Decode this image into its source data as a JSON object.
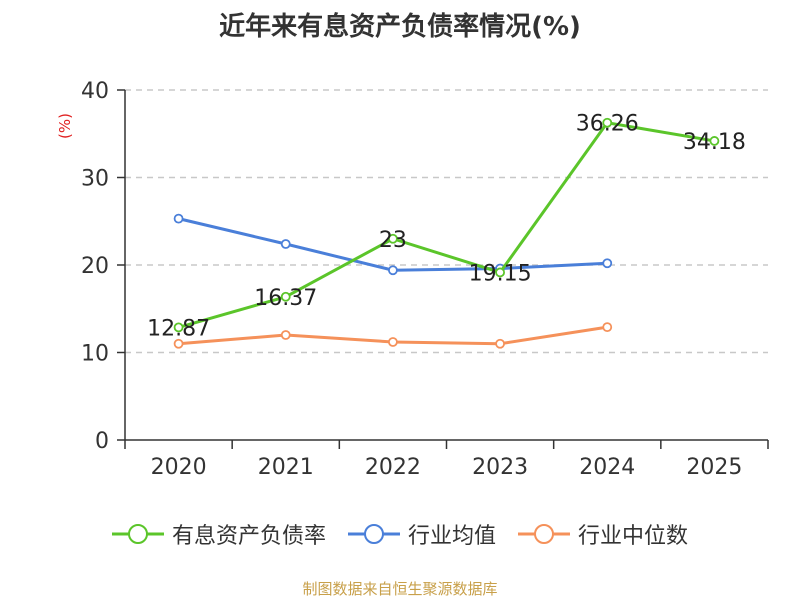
{
  "chart_data": {
    "type": "line",
    "title": "近年来有息资产负债率情况(%)",
    "ylabel": "(%)",
    "xlabel": "",
    "categories": [
      "2020",
      "2021",
      "2022",
      "2023",
      "2024",
      "2025"
    ],
    "ylim": [
      0,
      40
    ],
    "yticks": [
      0,
      10,
      20,
      30,
      40
    ],
    "grid": true,
    "legend_position": "bottom",
    "series": [
      {
        "name": "有息资产负债率",
        "color": "#5bc52a",
        "values": [
          12.87,
          16.37,
          23,
          19.15,
          36.26,
          34.18
        ],
        "labels": [
          "12.87",
          "16.37",
          "23",
          "19.15",
          "36.26",
          "34.18"
        ]
      },
      {
        "name": "行业均值",
        "color": "#4a7fd9",
        "values": [
          25.3,
          22.4,
          19.4,
          19.6,
          20.2,
          null
        ]
      },
      {
        "name": "行业中位数",
        "color": "#f5915a",
        "values": [
          11.0,
          12.0,
          11.2,
          11.0,
          12.9,
          null
        ]
      }
    ]
  },
  "source": "制图数据来自恒生聚源数据库"
}
